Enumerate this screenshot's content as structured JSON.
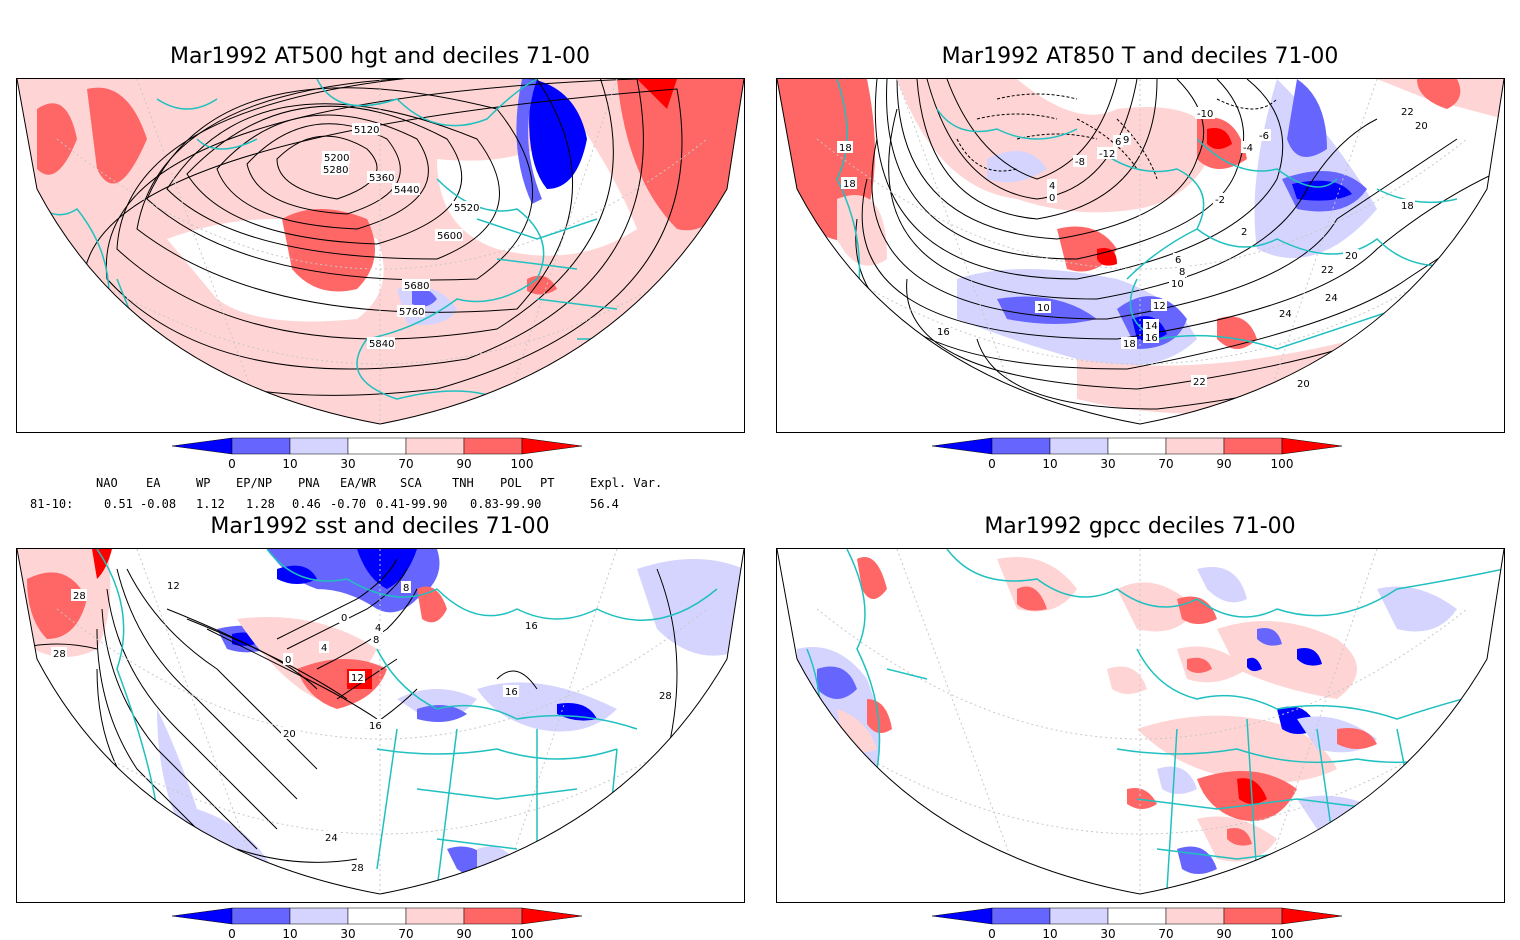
{
  "panels": [
    {
      "title": "Mar1992 AT500 hgt and deciles 71-00"
    },
    {
      "title": "Mar1992 AT850 T and deciles 71-00"
    },
    {
      "title": "Mar1992 sst and deciles 71-00"
    },
    {
      "title": "Mar1992 gpcc deciles 71-00"
    }
  ],
  "colorbar": {
    "ticks": [
      "0",
      "10",
      "30",
      "70",
      "90",
      "100"
    ],
    "colors": [
      "#0000ff",
      "#6666ff",
      "#d4d4ff",
      "#ffffff",
      "#ffd4d4",
      "#ff6666",
      "#ff0000"
    ]
  },
  "indices": {
    "headers": [
      "NAO",
      "EA",
      "WP",
      "EP/NP",
      "PNA",
      "EA/WR",
      "SCA",
      "TNH",
      "POL",
      "PT",
      "Expl. Var."
    ],
    "row_label": "81-10:",
    "values": [
      "0.51",
      "-0.08",
      "1.12",
      "1.28",
      "0.46",
      "-0.70",
      "0.41",
      "-99.90",
      "0.83",
      "-99.90",
      "56.4"
    ]
  },
  "contour_labels": {
    "p1": [
      "5120",
      "5200",
      "5280",
      "5360",
      "5440",
      "5520",
      "5600",
      "5680",
      "5760",
      "5840"
    ],
    "p2": [
      "-8",
      "-10",
      "-12",
      "6",
      "9",
      "-6",
      "-4",
      "-2",
      "0",
      "2",
      "4",
      "6",
      "8",
      "10",
      "10",
      "12",
      "14",
      "16",
      "18",
      "18",
      "18",
      "18",
      "16",
      "20",
      "20",
      "22",
      "22",
      "24",
      "24",
      "20",
      "22"
    ],
    "p3": [
      "12",
      "28",
      "28",
      "0",
      "4",
      "8",
      "0",
      "4",
      "8",
      "12",
      "16",
      "20",
      "16",
      "24",
      "28",
      "16",
      "28"
    ]
  }
}
